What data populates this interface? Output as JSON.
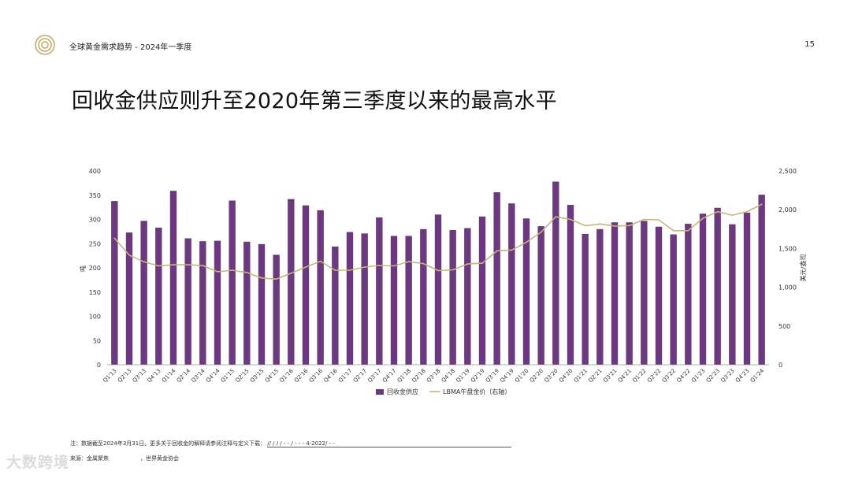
{
  "header": {
    "title": "全球黄金需求趋势 - 2024年一季度",
    "page_number": "15"
  },
  "main_title": "回收金供应则升至2020年第三季度以来的最高水平",
  "footnote": {
    "text": "注：数据截至2024年3月31日。更多关于回收金的解释请参阅注释与定义下载：",
    "link": "//            /      /      /      -      -      /      -      -    -  4-2022/    -    -"
  },
  "source": {
    "label": "来源：金属聚焦",
    "org": "，世界黄金协会"
  },
  "watermark": "大数跨境",
  "colors": {
    "bar": "#6b3a7e",
    "line": "#c9b27e",
    "axis_text": "#333333",
    "gridline": "#e6e6e6"
  },
  "chart_data": {
    "type": "bar",
    "title": "",
    "ylabel": "吨",
    "y2label": "美元/盎司",
    "ylim": [
      0,
      400
    ],
    "y2lim": [
      0,
      2500
    ],
    "yticks": [
      "0",
      "50",
      "100",
      "150",
      "200",
      "250",
      "300",
      "350",
      "400"
    ],
    "y2ticks": [
      "0",
      "500",
      "1,000",
      "1,500",
      "2,000",
      "2,500"
    ],
    "grid": false,
    "legend_position": "bottom",
    "categories": [
      "Q1'13",
      "Q2'13",
      "Q3'13",
      "Q4'13",
      "Q1'14",
      "Q2'14",
      "Q3'14",
      "Q4'14",
      "Q1'15",
      "Q2'15",
      "Q3'15",
      "Q4'15",
      "Q1'16",
      "Q2'16",
      "Q3'16",
      "Q4'16",
      "Q1'17",
      "Q2'17",
      "Q3'17",
      "Q4'17",
      "Q1'18",
      "Q2'18",
      "Q3'18",
      "Q4'18",
      "Q1'19",
      "Q2'19",
      "Q3'19",
      "Q4'19",
      "Q1'20",
      "Q2'20",
      "Q3'20",
      "Q4'20",
      "Q1'21",
      "Q2'21",
      "Q3'21",
      "Q4'21",
      "Q1'22",
      "Q2'22",
      "Q3'22",
      "Q4'22",
      "Q1'23",
      "Q2'23",
      "Q3'23",
      "Q4'23",
      "Q1'24"
    ],
    "series": [
      {
        "name": "回收金供应",
        "type": "bar",
        "axis": "left",
        "values": [
          338,
          273,
          297,
          283,
          359,
          261,
          255,
          256,
          339,
          254,
          249,
          227,
          342,
          329,
          319,
          244,
          274,
          271,
          304,
          266,
          266,
          280,
          310,
          278,
          282,
          306,
          356,
          333,
          302,
          286,
          378,
          330,
          270,
          280,
          294,
          294,
          297,
          285,
          269,
          291,
          312,
          324,
          290,
          314,
          351
        ]
      },
      {
        "name": "LBMA午盘金价（右轴）",
        "type": "line",
        "axis": "right",
        "values": [
          1632,
          1415,
          1328,
          1275,
          1290,
          1290,
          1280,
          1200,
          1220,
          1190,
          1120,
          1105,
          1180,
          1260,
          1335,
          1220,
          1220,
          1260,
          1280,
          1275,
          1330,
          1305,
          1215,
          1225,
          1300,
          1310,
          1470,
          1480,
          1580,
          1710,
          1910,
          1875,
          1795,
          1815,
          1790,
          1795,
          1875,
          1870,
          1730,
          1730,
          1890,
          1975,
          1930,
          1975,
          2070
        ]
      }
    ]
  }
}
